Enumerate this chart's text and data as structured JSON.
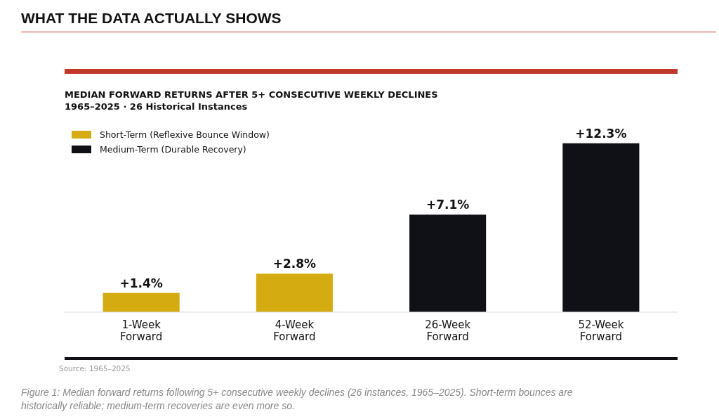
{
  "chart_data": {
    "type": "bar",
    "title": "WHAT THE DATA ACTUALLY SHOWS",
    "subtitle": "MEDIAN FORWARD RETURNS AFTER 5+ CONSECUTIVE WEEKLY DECLINES",
    "categories": [
      "1-Week Forward",
      "4-Week Forward",
      "26-Week Forward",
      "52-Week Forward"
    ],
    "series": [
      {
        "name": "Short-Term (Reflexive Bounce Window)",
        "color": "#d4ab10",
        "values": [
          1.4,
          2.8,
          null,
          null
        ],
        "value_labels": [
          "+1.4%",
          "+2.8%",
          null,
          null
        ]
      },
      {
        "name": "Medium-Term (Durable Recovery)",
        "color": "#0f1117",
        "values": [
          null,
          null,
          7.1,
          12.3
        ],
        "value_labels": [
          null,
          null,
          "+7.1%",
          "+12.3%"
        ]
      }
    ],
    "legend": "top left",
    "annotations": [
      "1965–2025  ·  26 Historical Instances",
      "Source: 1965–2025",
      "Figure 1: Median forward returns following 5+ consecutive weekly declines (26 instances, 1965–2025). Short-term bounces are historically reliable; medium-term recoveries are even more so."
    ]
  }
}
